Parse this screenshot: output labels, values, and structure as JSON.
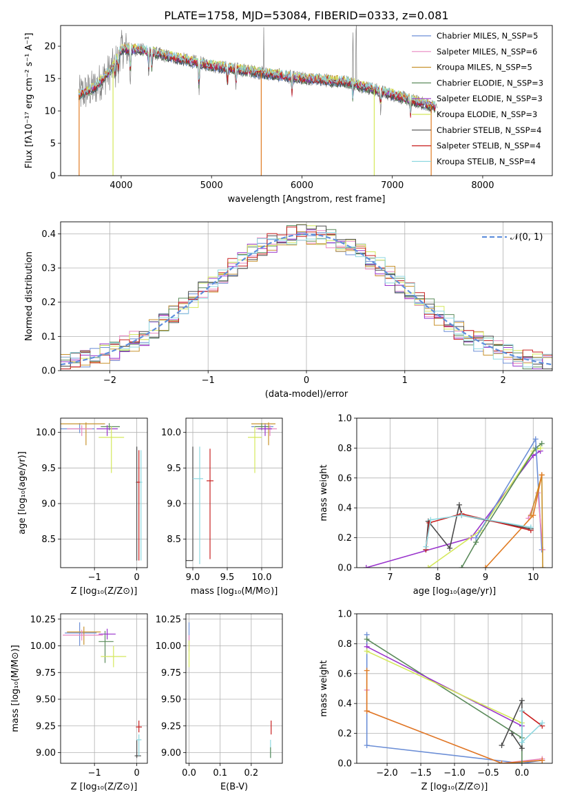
{
  "colors": {
    "chabrier_miles": "#6b8ed6",
    "salpeter_miles": "#e887c0",
    "kroupa_miles": "#c8922c",
    "chabrier_elodie": "#5a8a5a",
    "salpeter_elodie": "#9933cc",
    "kroupa_elodie": "#d4e85a",
    "chabrier_stelib": "#4a4a4a",
    "salpeter_stelib": "#c81e1e",
    "kroupa_stelib": "#8ed8e0",
    "orange": "#e07a20",
    "spectrum": "#808080",
    "normal": "#5f8fdc"
  },
  "chart_data": [
    {
      "id": "spectrum",
      "type": "line",
      "title": "PLATE=1758, MJD=53084, FIBERID=0333, z=0.081",
      "xlabel": "wavelength [Angstrom, rest frame]",
      "ylabel": "Flux [fλ10⁻¹⁷ erg cm⁻² s⁻¹ A⁻¹]",
      "xlim": [
        3330,
        8770
      ],
      "ylim": [
        0,
        23.2
      ],
      "xticks": [
        "4000",
        "5000",
        "6000",
        "7000",
        "8000"
      ],
      "yticks": [
        "0",
        "5",
        "10",
        "15",
        "20"
      ],
      "grid": false,
      "legend_position": "top-right",
      "legend": [
        "Chabrier MILES, N_SSP=5",
        "Salpeter MILES, N_SSP=6",
        "Kroupa MILES, N_SSP=5",
        "Chabrier ELODIE, N_SSP=3",
        "Salpeter ELODIE, N_SSP=3",
        "Kroupa ELODIE, N_SSP=3",
        "Chabrier STELIB, N_SSP=4",
        "Salpeter STELIB, N_SSP=4",
        "Kroupa STELIB, N_SSP=4"
      ],
      "continuum": {
        "x": [
          3530,
          3700,
          3900,
          4000,
          4200,
          4500,
          5000,
          5500,
          6000,
          6500,
          7000,
          7500
        ],
        "y": [
          12.5,
          13.5,
          16.5,
          19.5,
          19.5,
          18.5,
          17,
          16,
          15,
          14.5,
          12.5,
          10.5
        ]
      }
    },
    {
      "id": "residual-hist",
      "type": "bar",
      "xlabel": "(data-model)/error",
      "ylabel": "Normed distribution",
      "xlim": [
        -2.5,
        2.5
      ],
      "ylim": [
        0,
        0.435
      ],
      "xticks": [
        "−2",
        "−1",
        "0",
        "1",
        "2"
      ],
      "yticks": [
        "0.0",
        "0.1",
        "0.2",
        "0.3",
        "0.4"
      ],
      "grid": true,
      "legend_position": "top-right",
      "legend": [
        "𝒩(0, 1)"
      ],
      "bin_width": 0.1
    },
    {
      "id": "z-age",
      "type": "scatter",
      "xlabel": "Z [log₁₀(Z/Z⊙)]",
      "ylabel": "age  [log₁₀(age/yr)]",
      "xlim": [
        -1.8,
        0.25
      ],
      "ylim": [
        8.1,
        10.2
      ],
      "xticks": [
        "−1",
        "0"
      ],
      "yticks": [
        "8.5",
        "9.0",
        "9.5",
        "10.0"
      ],
      "grid": true
    },
    {
      "id": "mass-age",
      "type": "scatter",
      "xlabel": "mass [log₁₀(M/M⊙)]",
      "ylabel": "",
      "xlim": [
        8.9,
        10.3
      ],
      "ylim": [
        8.1,
        10.2
      ],
      "xticks": [
        "9.0",
        "9.5",
        "10.0"
      ],
      "yticks": [
        "8.5",
        "9.0",
        "9.5",
        "10.0"
      ],
      "grid": true
    },
    {
      "id": "age-weight",
      "type": "line",
      "xlabel": "age  [log₁₀(age/yr)]",
      "ylabel": "mass weight",
      "xlim": [
        6.3,
        10.4
      ],
      "ylim": [
        0,
        1
      ],
      "xticks": [
        "7",
        "8",
        "9",
        "10"
      ],
      "yticks": [
        "0.0",
        "0.2",
        "0.4",
        "0.6",
        "0.8",
        "1.0"
      ],
      "grid": true
    },
    {
      "id": "z-mass",
      "type": "scatter",
      "xlabel": "Z [log₁₀(Z/Z⊙)]",
      "ylabel": "mass [log₁₀(M/M⊙)]",
      "xlim": [
        -1.8,
        0.25
      ],
      "ylim": [
        8.9,
        10.3
      ],
      "xticks": [
        "−1",
        "0"
      ],
      "yticks": [
        "9.00",
        "9.25",
        "9.50",
        "9.75",
        "10.00",
        "10.25"
      ],
      "grid": true
    },
    {
      "id": "ebv-mass",
      "type": "scatter",
      "xlabel": "E(B-V)",
      "ylabel": "",
      "xlim": [
        -0.01,
        0.3
      ],
      "ylim": [
        8.9,
        10.3
      ],
      "xticks": [
        "0.0",
        "0.1",
        "0.2"
      ],
      "yticks": [
        "9.00",
        "9.25",
        "9.50",
        "9.75",
        "10.00",
        "10.25"
      ],
      "grid": true
    },
    {
      "id": "z-weight",
      "type": "line",
      "xlabel": "Z [log₁₀(Z/Z⊙)]",
      "ylabel": "mass weight",
      "xlim": [
        -2.45,
        0.45
      ],
      "ylim": [
        0,
        1
      ],
      "xticks": [
        "−2.0",
        "−1.5",
        "−1.0",
        "−0.5",
        "0.0"
      ],
      "yticks": [
        "0.0",
        "0.2",
        "0.4",
        "0.6",
        "0.8",
        "1.0"
      ],
      "grid": true
    }
  ]
}
